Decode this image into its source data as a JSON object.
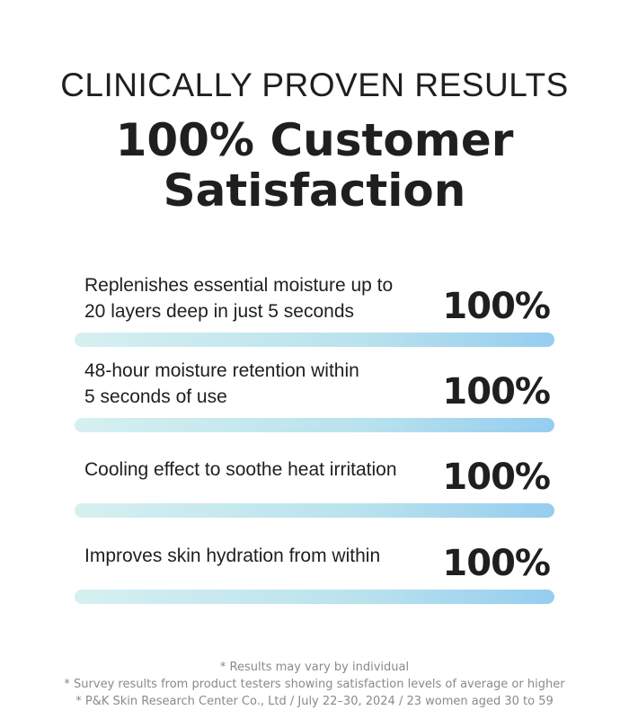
{
  "header": {
    "eyebrow": "CLINICALLY PROVEN RESULTS",
    "headline_lines": [
      "100% Customer",
      "Satisfaction"
    ]
  },
  "items": [
    {
      "text_lines": [
        "Replenishes essential moisture up to",
        "20 layers deep in just 5 seconds"
      ],
      "value": "100%"
    },
    {
      "text_lines": [
        "48-hour moisture retention within",
        "5 seconds of use"
      ],
      "value": "100%"
    },
    {
      "text_lines": [
        "Cooling effect to soothe heat irritation"
      ],
      "value": "100%"
    },
    {
      "text_lines": [
        "Improves skin hydration from within"
      ],
      "value": "100%"
    }
  ],
  "footer": {
    "notes": [
      "* Results may vary by individual",
      "* Survey results from product testers showing satisfaction levels of average or higher",
      "* P&K Skin Research Center Co., Ltd / July 22–30, 2024 / 23 women aged 30 to 59"
    ]
  }
}
